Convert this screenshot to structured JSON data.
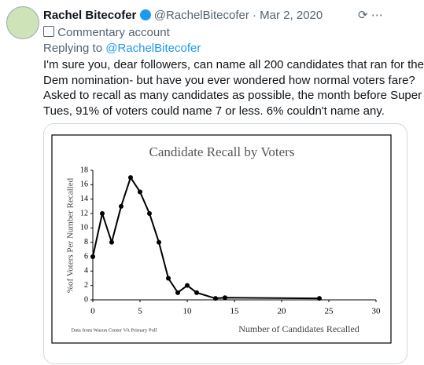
{
  "tweet": {
    "name": "Rachel Bitecofer",
    "handle": "@RachelBitecofer",
    "date": "· Mar 2, 2020",
    "label": "Commentary account",
    "reply_prefix": "Replying to",
    "reply_to": "@RachelBitecofer",
    "text": [
      "I'm sure you, dear followers, can name all 200 candidates that ran for the",
      "Dem nomination- but have you ever wondered how normal voters fare?",
      "Asked to recall as many candidates as possible, the month before Super",
      "Tues, 91% of voters could name 7 or less. 6% couldn't name any."
    ]
  },
  "chart_data": {
    "type": "line",
    "title": "Candidate Recall by Voters",
    "x_label": "Number of Candidates Recalled",
    "y_label": "%of Voters Per Number Recalled",
    "note": "Data from Wason Center VA Primary Poll",
    "x": [
      0,
      1,
      2,
      3,
      4,
      5,
      6,
      7,
      8,
      9,
      10,
      11,
      13,
      14,
      24
    ],
    "series": [
      {
        "values": [
          6,
          12,
          8,
          13,
          17,
          15,
          12,
          8,
          3,
          1,
          2,
          1,
          0.2,
          0.3,
          0.2
        ],
        "color": "#000000"
      }
    ],
    "xlim": [
      0,
      30
    ],
    "xticks": [
      0,
      5,
      10,
      15,
      20,
      25,
      30
    ],
    "ylim": [
      0,
      18
    ],
    "yticks": [
      0,
      2,
      4,
      6,
      8,
      10,
      12,
      14,
      16,
      18
    ]
  }
}
